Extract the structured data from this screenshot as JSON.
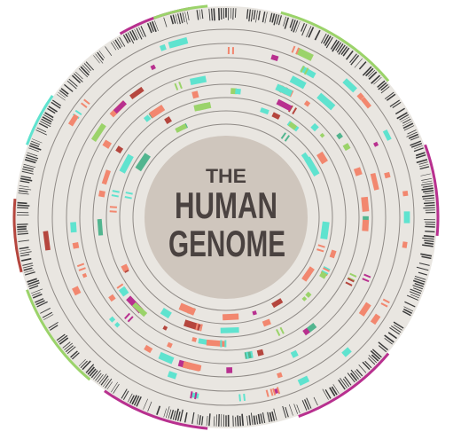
{
  "title": {
    "line1": "THE",
    "line2": "HUMAN",
    "line3": "GENOME"
  },
  "colors": {
    "background_disc": "#e9e6e1",
    "center_disc": "#cfc6bd",
    "ring_stroke": "#8f8a86",
    "title": "#4a4240",
    "barcode": "#3a3a3a",
    "coral": "#f2876f",
    "red": "#b5463e",
    "teal": "#5fe3cf",
    "green": "#9bd36a",
    "sage": "#52b58f",
    "magenta": "#b8308f"
  },
  "icons": {
    "disc": "genome-circos-disc"
  }
}
